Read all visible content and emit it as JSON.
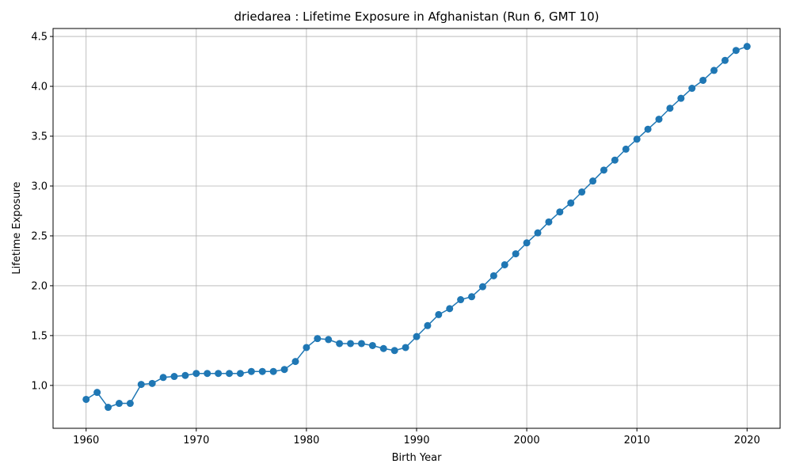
{
  "chart_data": {
    "type": "line",
    "title": "driedarea : Lifetime Exposure in Afghanistan (Run 6, GMT 10)",
    "xlabel": "Birth Year",
    "ylabel": "Lifetime Exposure",
    "xlim": [
      1957,
      2023
    ],
    "ylim": [
      0.57,
      4.58
    ],
    "xticks": [
      1960,
      1970,
      1980,
      1990,
      2000,
      2010,
      2020
    ],
    "xtick_labels": [
      "1960",
      "1970",
      "1980",
      "1990",
      "2000",
      "2010",
      "2020"
    ],
    "yticks": [
      1.0,
      1.5,
      2.0,
      2.5,
      3.0,
      3.5,
      4.0,
      4.5
    ],
    "ytick_labels": [
      "1.0",
      "1.5",
      "2.0",
      "2.5",
      "3.0",
      "3.5",
      "4.0",
      "4.5"
    ],
    "grid": true,
    "marker": "circle",
    "line_color": "#1f77b4",
    "x": [
      1960,
      1961,
      1962,
      1963,
      1964,
      1965,
      1966,
      1967,
      1968,
      1969,
      1970,
      1971,
      1972,
      1973,
      1974,
      1975,
      1976,
      1977,
      1978,
      1979,
      1980,
      1981,
      1982,
      1983,
      1984,
      1985,
      1986,
      1987,
      1988,
      1989,
      1990,
      1991,
      1992,
      1993,
      1994,
      1995,
      1996,
      1997,
      1998,
      1999,
      2000,
      2001,
      2002,
      2003,
      2004,
      2005,
      2006,
      2007,
      2008,
      2009,
      2010,
      2011,
      2012,
      2013,
      2014,
      2015,
      2016,
      2017,
      2018,
      2019,
      2020
    ],
    "values": [
      0.86,
      0.93,
      0.78,
      0.82,
      0.82,
      1.01,
      1.02,
      1.08,
      1.09,
      1.1,
      1.12,
      1.12,
      1.12,
      1.12,
      1.12,
      1.14,
      1.14,
      1.14,
      1.16,
      1.24,
      1.38,
      1.47,
      1.46,
      1.42,
      1.42,
      1.42,
      1.4,
      1.37,
      1.35,
      1.38,
      1.49,
      1.6,
      1.71,
      1.77,
      1.86,
      1.89,
      1.99,
      2.1,
      2.21,
      2.32,
      2.43,
      2.53,
      2.64,
      2.74,
      2.83,
      2.94,
      3.05,
      3.16,
      3.26,
      3.37,
      3.47,
      3.57,
      3.67,
      3.78,
      3.88,
      3.98,
      4.06,
      4.16,
      4.26,
      4.36,
      4.4
    ]
  }
}
